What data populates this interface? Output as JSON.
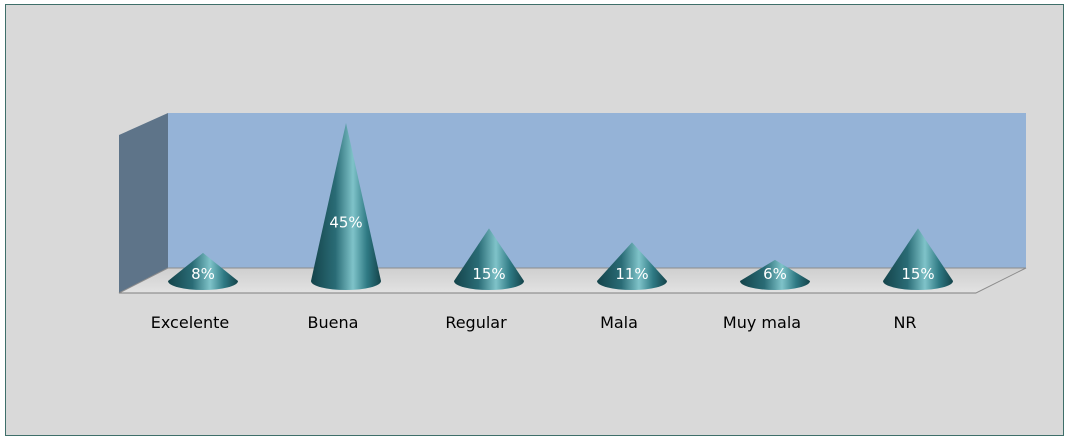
{
  "chart_data": {
    "type": "bar",
    "style": "3d-cone",
    "categories": [
      "Excelente",
      "Buena",
      "Regular",
      "Mala",
      "Muy mala",
      "NR"
    ],
    "values": [
      8,
      45,
      15,
      11,
      6,
      15
    ],
    "value_labels": [
      "8%",
      "45%",
      "15%",
      "11%",
      "6%",
      "15%"
    ],
    "ylim": [
      0,
      45
    ],
    "title": "",
    "xlabel": "",
    "ylabel": "",
    "grid": false,
    "legend": "none"
  },
  "colors": {
    "frame_background": "#d9d9d9",
    "back_wall": "#95b3d7",
    "side_wall": "#5e7489",
    "floor": "#d9d9d9",
    "cone_dark": "#14434a",
    "cone_mid": "#2f7a84",
    "cone_light": "#7fc3c9",
    "label_text": "#ffffff"
  }
}
